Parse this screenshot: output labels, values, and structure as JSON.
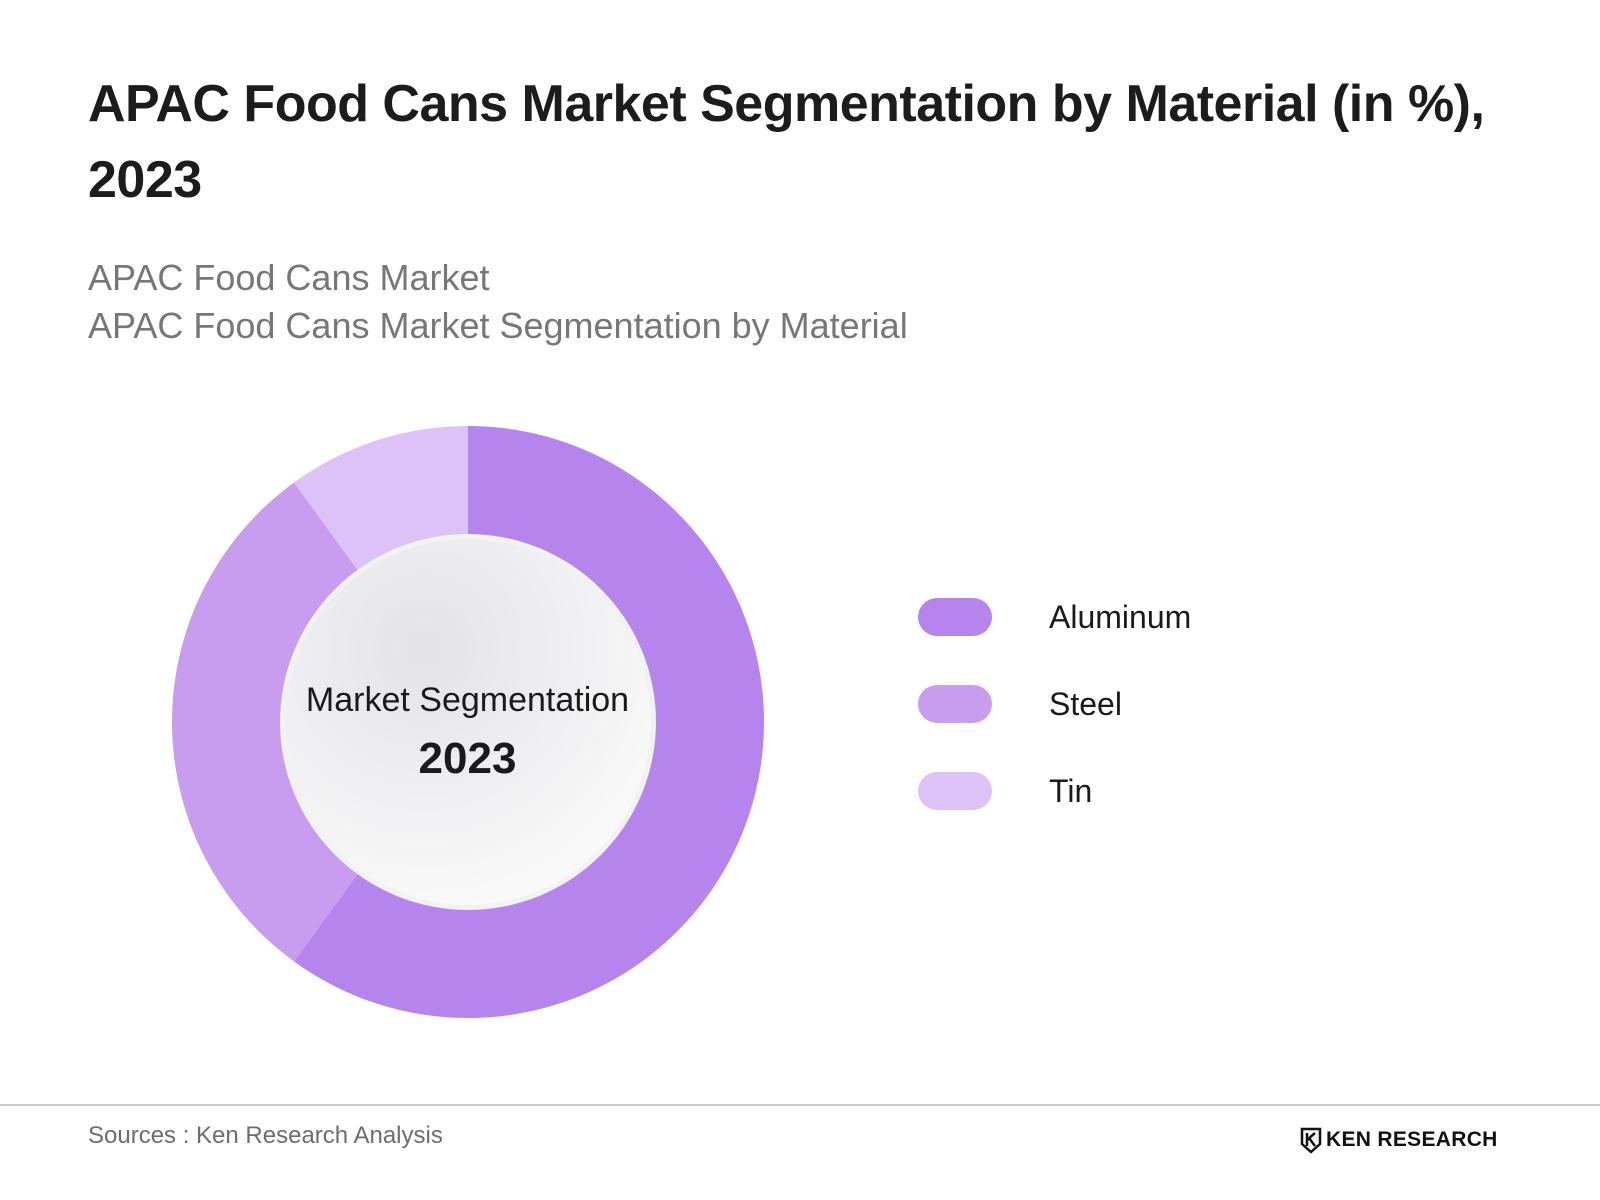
{
  "header": {
    "title": "APAC Food Cans Market Segmentation by Material (in %), 2023",
    "subtitle_lines": [
      "APAC Food Cans Market",
      "APAC Food Cans Market Segmentation by Material"
    ]
  },
  "chart_data": {
    "type": "pie",
    "variant": "donut",
    "title": "APAC Food Cans Market Segmentation by Material (in %), 2023",
    "center_label": "Market Segmentation",
    "center_value": "2023",
    "categories": [
      "Aluminum",
      "Steel",
      "Tin"
    ],
    "values": [
      60,
      30,
      10
    ],
    "unit": "%",
    "colors": [
      "#b584ec",
      "#c89cee",
      "#dcc2f7"
    ],
    "legend_position": "right",
    "start_angle": "top",
    "direction": "clockwise"
  },
  "legend": {
    "items": [
      {
        "label": "Aluminum",
        "color": "#b584ec"
      },
      {
        "label": "Steel",
        "color": "#c89cee"
      },
      {
        "label": "Tin",
        "color": "#dcc2f7"
      }
    ]
  },
  "footer": {
    "source": "Sources : Ken Research Analysis",
    "brand": "KEN RESEARCH"
  },
  "icons": {
    "brand_logo": "ken-research-logo-icon"
  }
}
